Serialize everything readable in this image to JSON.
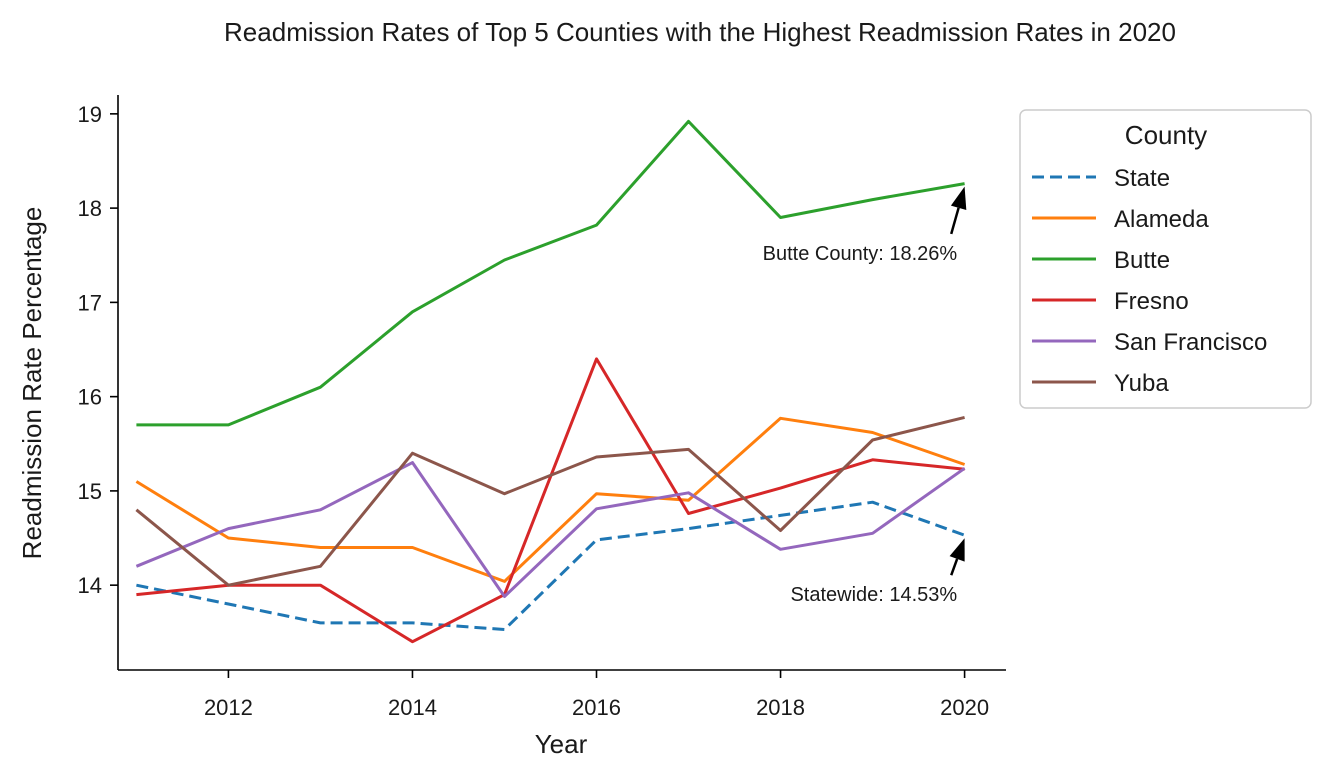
{
  "chart_data": {
    "type": "line",
    "title": "Readmission Rates of Top 5 Counties with the Highest Readmission Rates in 2020",
    "xlabel": "Year",
    "ylabel": "Readmission Rate Percentage",
    "xlim": [
      2010.8,
      2020.45
    ],
    "ylim": [
      13.1,
      19.2
    ],
    "x_ticks": [
      2012,
      2014,
      2016,
      2018,
      2020
    ],
    "y_ticks": [
      14,
      15,
      16,
      17,
      18,
      19
    ],
    "grid": false,
    "legend": {
      "title": "County",
      "placement": "outside-right"
    },
    "x": [
      2011,
      2012,
      2013,
      2014,
      2015,
      2016,
      2017,
      2018,
      2019,
      2020
    ],
    "series": [
      {
        "name": "State",
        "color": "#1f77b4",
        "dashed": true,
        "values": [
          14.0,
          13.8,
          13.6,
          13.6,
          13.53,
          14.48,
          14.6,
          14.74,
          14.88,
          14.53
        ]
      },
      {
        "name": "Alameda",
        "color": "#ff7f0e",
        "dashed": false,
        "values": [
          15.1,
          14.5,
          14.4,
          14.4,
          14.04,
          14.97,
          14.9,
          15.77,
          15.62,
          15.28
        ]
      },
      {
        "name": "Butte",
        "color": "#2ca02c",
        "dashed": false,
        "values": [
          15.7,
          15.7,
          16.1,
          16.9,
          17.45,
          17.82,
          18.92,
          17.9,
          18.09,
          18.26
        ]
      },
      {
        "name": "Fresno",
        "color": "#d62728",
        "dashed": false,
        "values": [
          13.9,
          14.0,
          14.0,
          13.4,
          13.9,
          16.4,
          14.76,
          15.03,
          15.33,
          15.23
        ]
      },
      {
        "name": "San Francisco",
        "color": "#9467bd",
        "dashed": false,
        "values": [
          14.2,
          14.6,
          14.8,
          15.3,
          13.88,
          14.81,
          14.98,
          14.38,
          14.55,
          15.24
        ]
      },
      {
        "name": "Yuba",
        "color": "#8c564b",
        "dashed": false,
        "values": [
          14.8,
          14.0,
          14.2,
          15.4,
          14.97,
          15.36,
          15.44,
          14.58,
          15.54,
          15.78
        ]
      }
    ],
    "annotations": [
      {
        "text": "Butte County: 18.26%",
        "x": 2020,
        "y": 18.26,
        "text_x": 2019.92,
        "text_y": 17.45
      },
      {
        "text": "Statewide: 14.53%",
        "x": 2020,
        "y": 14.53,
        "text_x": 2019.92,
        "text_y": 13.83
      }
    ]
  }
}
